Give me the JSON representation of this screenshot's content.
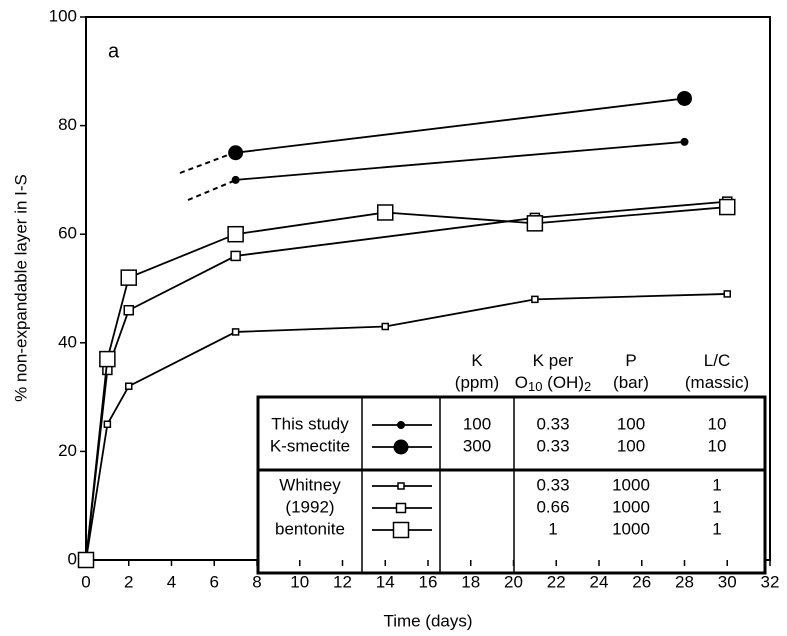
{
  "chart_data": {
    "type": "line",
    "annotation": "a",
    "x_label": "Time (days)",
    "y_label": "% non-expandable layer in I-S",
    "xlim": [
      0,
      32
    ],
    "xticks": [
      0,
      2,
      4,
      6,
      8,
      10,
      12,
      14,
      16,
      18,
      20,
      22,
      24,
      26,
      28,
      30,
      32
    ],
    "ylim": [
      0,
      100
    ],
    "yticks": [
      0,
      20,
      40,
      60,
      80,
      100
    ],
    "table_headers": [
      [
        [
          "K"
        ],
        [
          "(ppm)"
        ]
      ],
      [
        [
          "K per"
        ],
        [
          "O",
          "10",
          " (OH)",
          "2"
        ]
      ],
      [
        [
          "P"
        ],
        [
          "(bar)"
        ]
      ],
      [
        [
          "L/C"
        ],
        [
          "(massic)"
        ]
      ]
    ],
    "series": [
      {
        "name": "This study",
        "color": "#000000",
        "marker": "circle",
        "marker_size": 4,
        "x": [
          7,
          28
        ],
        "values": [
          70,
          77
        ],
        "k_ppm": 100,
        "k_per": 0.33,
        "p": 100,
        "lc": 10
      },
      {
        "name": "K-smectite",
        "color": "#000000",
        "marker": "circle",
        "marker_size": 7.5,
        "x": [
          7,
          28
        ],
        "values": [
          75,
          85
        ],
        "k_ppm": 300,
        "k_per": 0.33,
        "p": 100,
        "lc": 10
      },
      {
        "name": "Whitney",
        "color": "#000000",
        "marker": "square",
        "marker_size": 3,
        "x": [
          0,
          1,
          2,
          7,
          14,
          21,
          30
        ],
        "values": [
          0,
          25,
          32,
          42,
          43,
          48,
          49
        ],
        "k_ppm": null,
        "k_per": 0.33,
        "p": 1000,
        "lc": 1
      },
      {
        "name": "(1992)",
        "color": "#000000",
        "marker": "square",
        "marker_size": 4.5,
        "x": [
          0,
          1,
          2,
          7,
          21,
          30
        ],
        "values": [
          0,
          35,
          46,
          56,
          63,
          66
        ],
        "k_ppm": null,
        "k_per": 0.66,
        "p": 1000,
        "lc": 1
      },
      {
        "name": "bentonite",
        "color": "#000000",
        "marker": "square",
        "marker_size": 7.5,
        "x": [
          0,
          1,
          2,
          7,
          14,
          21,
          30
        ],
        "values": [
          0,
          37,
          52,
          60,
          64,
          62,
          65
        ],
        "k_ppm": null,
        "k_per": 1,
        "p": 1000,
        "lc": 1
      }
    ]
  }
}
